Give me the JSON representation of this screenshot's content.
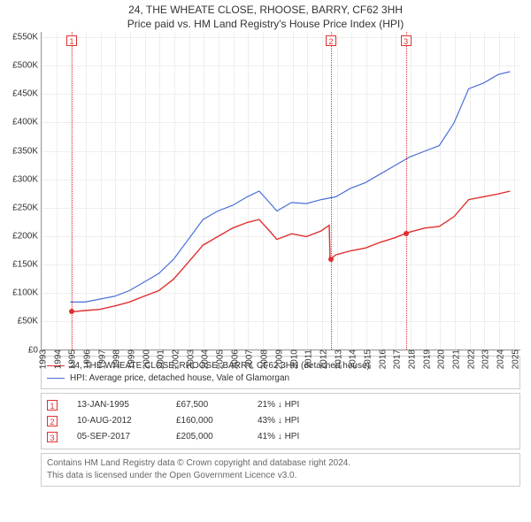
{
  "title_line1": "24, THE WHEATE CLOSE, RHOOSE, BARRY, CF62 3HH",
  "title_line2": "Price paid vs. HM Land Registry's House Price Index (HPI)",
  "chart": {
    "type": "line",
    "background_color": "#ffffff",
    "grid_color": "#eeeeee",
    "axis_color": "#999999",
    "label_fontsize": 10,
    "x_years": [
      1993,
      1994,
      1995,
      1996,
      1997,
      1998,
      1999,
      2000,
      2001,
      2002,
      2003,
      2004,
      2005,
      2006,
      2007,
      2008,
      2009,
      2010,
      2011,
      2012,
      2013,
      2014,
      2015,
      2016,
      2017,
      2018,
      2019,
      2020,
      2021,
      2022,
      2023,
      2024,
      2025
    ],
    "xlim": [
      1993,
      2025.5
    ],
    "ytick_step": 50000,
    "ylim": [
      0,
      560000
    ],
    "ylabels": [
      "£0",
      "£50K",
      "£100K",
      "£150K",
      "£200K",
      "£250K",
      "£300K",
      "£350K",
      "£400K",
      "£450K",
      "£500K",
      "£550K"
    ],
    "series": [
      {
        "name": "24, THE WHEATE CLOSE, RHOOSE, BARRY, CF62 3HH (detached house)",
        "color": "#e03030",
        "line_width": 1.4,
        "points": [
          [
            1995.04,
            67500
          ],
          [
            1996,
            70000
          ],
          [
            1997,
            72000
          ],
          [
            1998,
            78000
          ],
          [
            1999,
            85000
          ],
          [
            2000,
            95000
          ],
          [
            2001,
            105000
          ],
          [
            2002,
            125000
          ],
          [
            2003,
            155000
          ],
          [
            2004,
            185000
          ],
          [
            2005,
            200000
          ],
          [
            2006,
            215000
          ],
          [
            2007,
            225000
          ],
          [
            2007.8,
            230000
          ],
          [
            2008.5,
            210000
          ],
          [
            2009,
            195000
          ],
          [
            2010,
            205000
          ],
          [
            2011,
            200000
          ],
          [
            2012,
            210000
          ],
          [
            2012.55,
            220000
          ],
          [
            2012.61,
            160000
          ],
          [
            2013,
            168000
          ],
          [
            2014,
            175000
          ],
          [
            2015,
            180000
          ],
          [
            2016,
            190000
          ],
          [
            2017,
            198000
          ],
          [
            2017.68,
            205000
          ],
          [
            2018,
            208000
          ],
          [
            2019,
            215000
          ],
          [
            2020,
            218000
          ],
          [
            2021,
            235000
          ],
          [
            2022,
            265000
          ],
          [
            2023,
            270000
          ],
          [
            2024,
            275000
          ],
          [
            2024.8,
            280000
          ]
        ]
      },
      {
        "name": "HPI: Average price, detached house, Vale of Glamorgan",
        "color": "#4a6fd8",
        "line_width": 1.2,
        "points": [
          [
            1995,
            85000
          ],
          [
            1996,
            85000
          ],
          [
            1997,
            90000
          ],
          [
            1998,
            95000
          ],
          [
            1999,
            105000
          ],
          [
            2000,
            120000
          ],
          [
            2001,
            135000
          ],
          [
            2002,
            160000
          ],
          [
            2003,
            195000
          ],
          [
            2004,
            230000
          ],
          [
            2005,
            245000
          ],
          [
            2006,
            255000
          ],
          [
            2007,
            270000
          ],
          [
            2007.8,
            280000
          ],
          [
            2008.5,
            260000
          ],
          [
            2009,
            245000
          ],
          [
            2010,
            260000
          ],
          [
            2011,
            258000
          ],
          [
            2012,
            265000
          ],
          [
            2013,
            270000
          ],
          [
            2014,
            285000
          ],
          [
            2015,
            295000
          ],
          [
            2016,
            310000
          ],
          [
            2017,
            325000
          ],
          [
            2018,
            340000
          ],
          [
            2019,
            350000
          ],
          [
            2020,
            360000
          ],
          [
            2021,
            400000
          ],
          [
            2022,
            460000
          ],
          [
            2023,
            470000
          ],
          [
            2024,
            485000
          ],
          [
            2024.8,
            490000
          ]
        ]
      }
    ],
    "event_markers": [
      {
        "n": "1",
        "x": 1995.04,
        "y": 67500,
        "color": "#e03030"
      },
      {
        "n": "2",
        "x": 2012.61,
        "y": 160000,
        "color": "#e03030"
      },
      {
        "n": "3",
        "x": 2017.68,
        "y": 205000,
        "color": "#e03030"
      }
    ]
  },
  "legend": {
    "items": [
      {
        "color": "#e03030",
        "label": "24, THE WHEATE CLOSE, RHOOSE, BARRY, CF62 3HH (detached house)"
      },
      {
        "color": "#4a6fd8",
        "label": "HPI: Average price, detached house, Vale of Glamorgan"
      }
    ]
  },
  "transactions": [
    {
      "n": "1",
      "color": "#e03030",
      "date": "13-JAN-1995",
      "price": "£67,500",
      "hpi": "21% ↓ HPI"
    },
    {
      "n": "2",
      "color": "#e03030",
      "date": "10-AUG-2012",
      "price": "£160,000",
      "hpi": "43% ↓ HPI"
    },
    {
      "n": "3",
      "color": "#e03030",
      "date": "05-SEP-2017",
      "price": "£205,000",
      "hpi": "41% ↓ HPI"
    }
  ],
  "footer_line1": "Contains HM Land Registry data © Crown copyright and database right 2024.",
  "footer_line2": "This data is licensed under the Open Government Licence v3.0."
}
